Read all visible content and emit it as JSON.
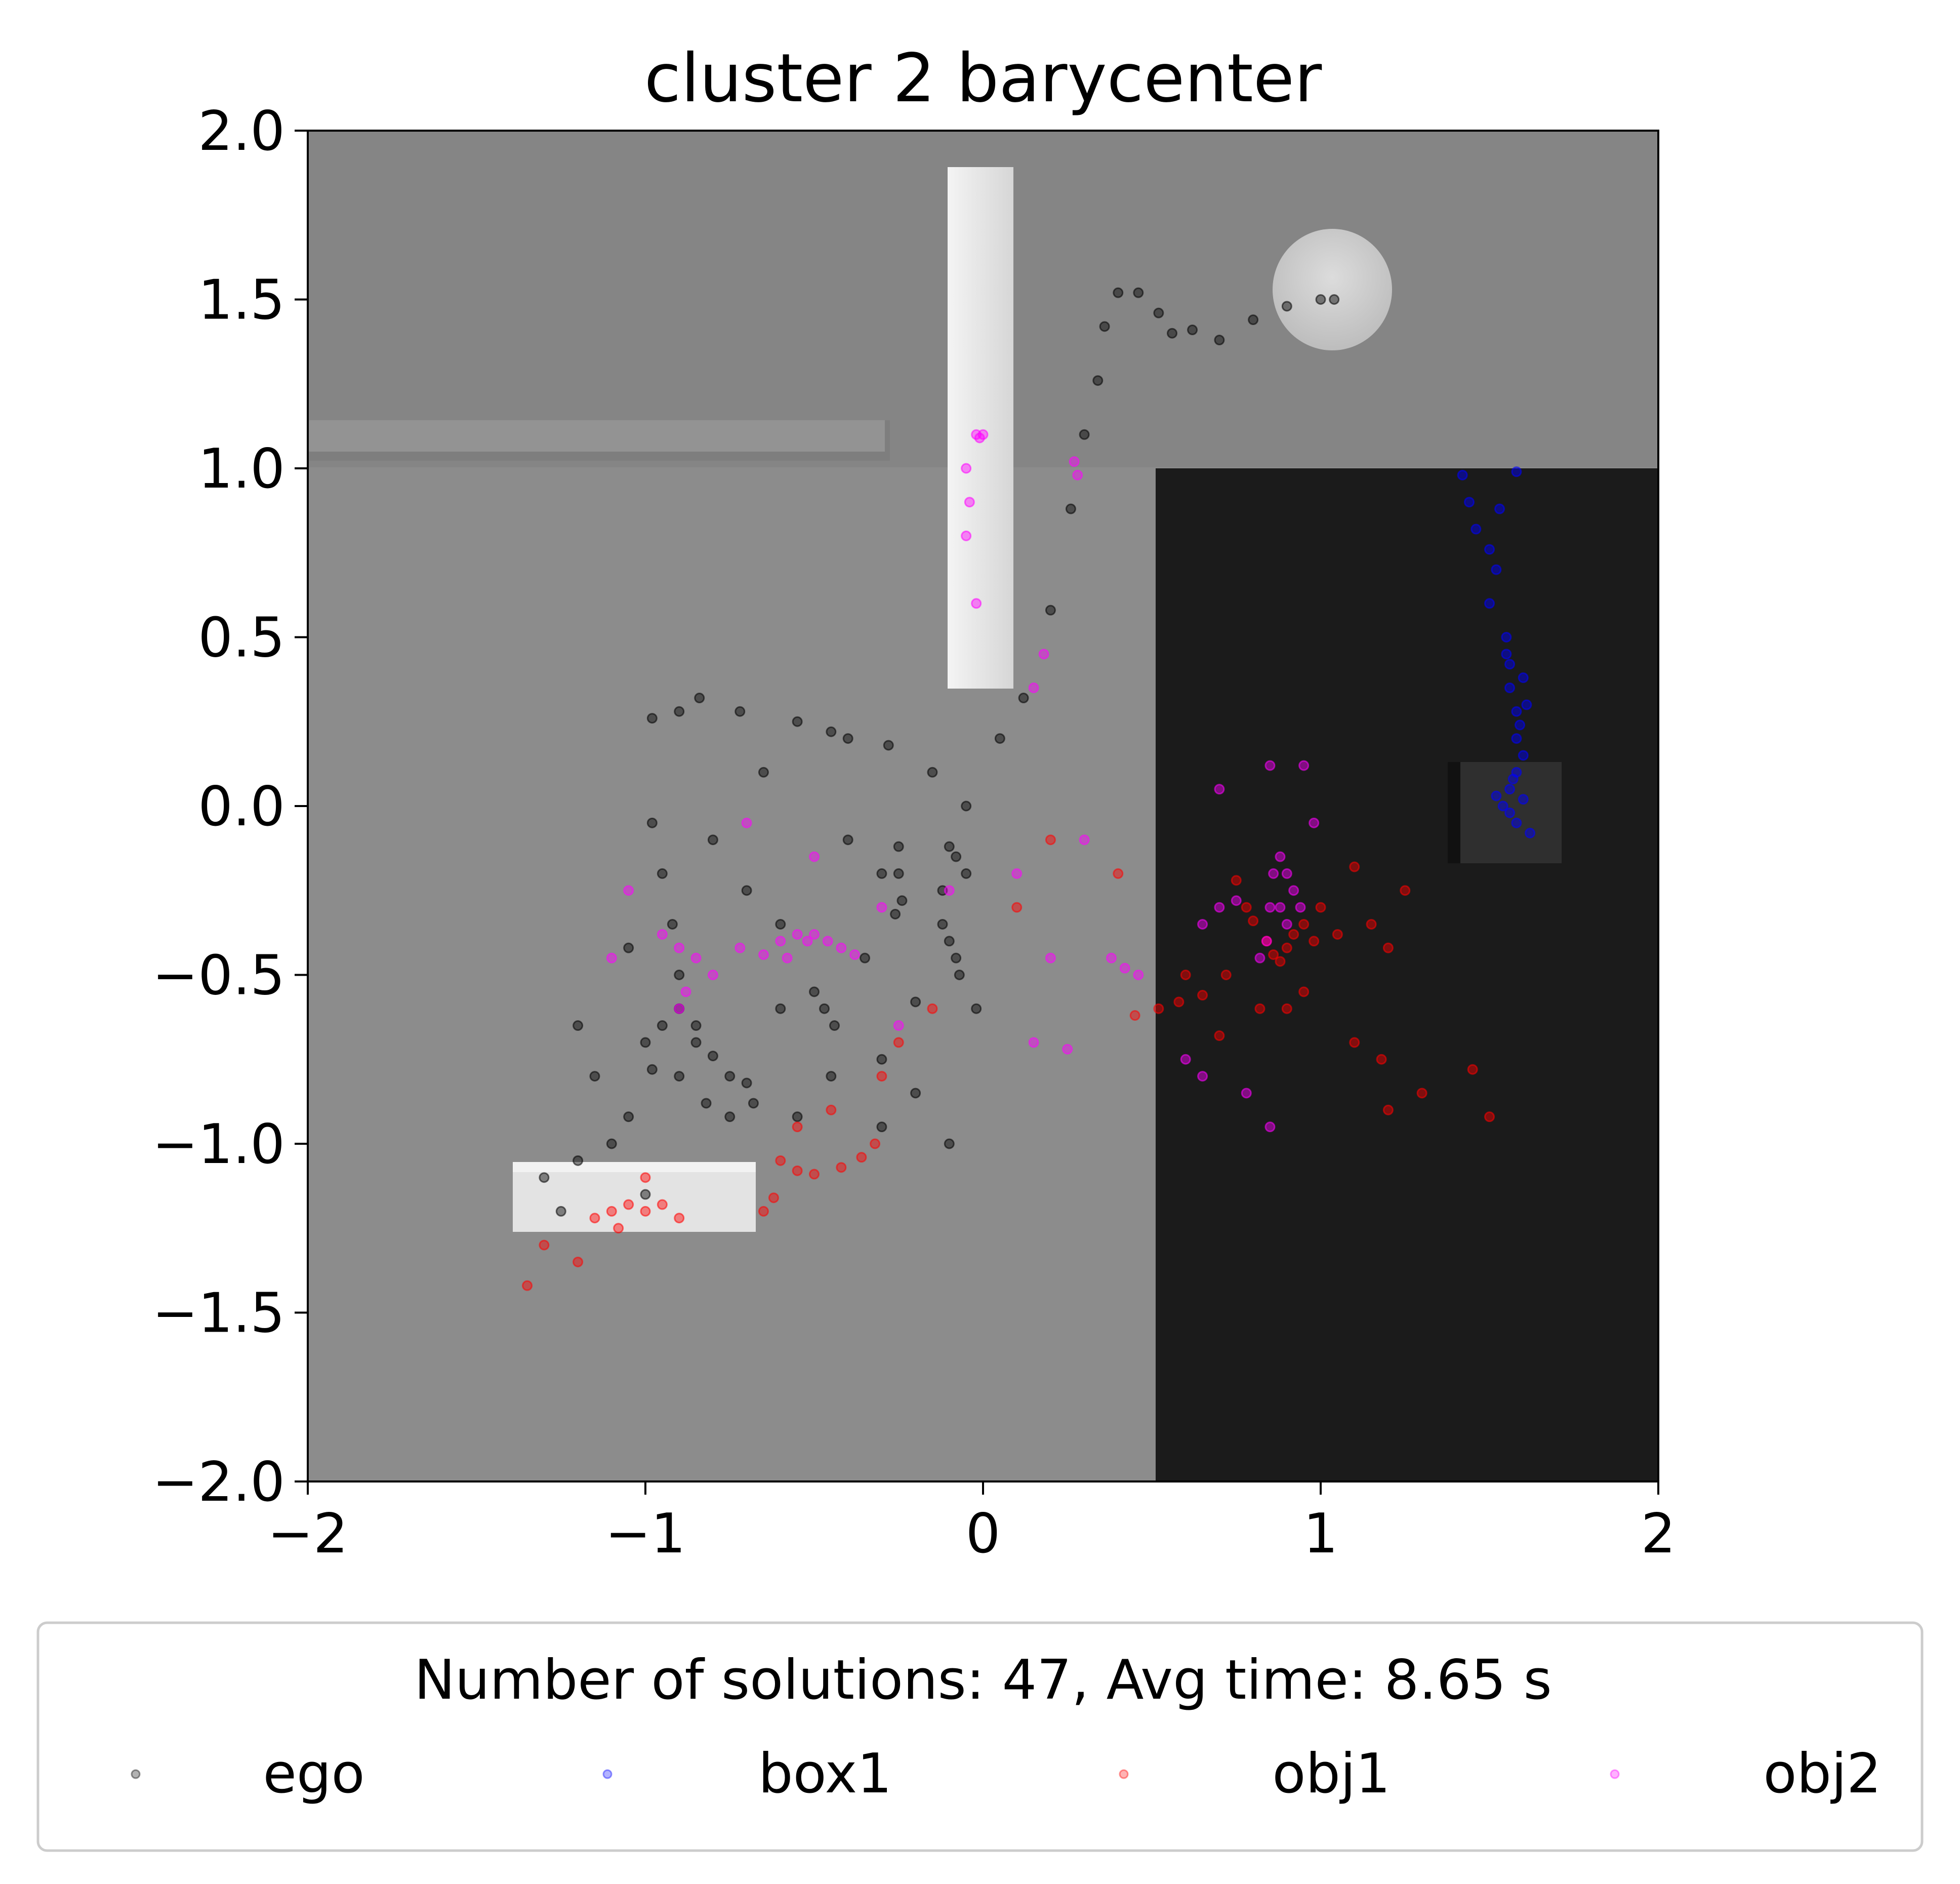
{
  "chart_data": {
    "type": "scatter",
    "title": "cluster 2 barycenter",
    "xlabel": "",
    "ylabel": "",
    "xlim": [
      -2,
      2
    ],
    "ylim": [
      -2,
      2
    ],
    "x_ticks": [
      -2,
      -1,
      0,
      1,
      2
    ],
    "x_tick_labels": [
      "−2",
      "−1",
      "0",
      "1",
      "2"
    ],
    "y_ticks": [
      2.0,
      1.5,
      1.0,
      0.5,
      0.0,
      -0.5,
      -1.0,
      -1.5,
      -2.0
    ],
    "y_tick_labels": [
      "2.0",
      "1.5",
      "1.0",
      "0.5",
      "0.0",
      "−0.5",
      "−1.0",
      "−1.5",
      "−2.0"
    ],
    "grid": false,
    "legend_position": "below",
    "legend_title": "Number of solutions: 47, Avg time: 8.65 s",
    "series": [
      {
        "name": "ego",
        "color": "#000000",
        "points": [
          [
            -0.98,
            0.26
          ],
          [
            -0.9,
            0.28
          ],
          [
            -0.84,
            0.32
          ],
          [
            -0.72,
            0.28
          ],
          [
            -0.55,
            0.25
          ],
          [
            -0.4,
            0.2
          ],
          [
            -0.28,
            0.18
          ],
          [
            -0.15,
            0.1
          ],
          [
            -0.05,
            0.0
          ],
          [
            0.05,
            0.2
          ],
          [
            0.12,
            0.32
          ],
          [
            0.2,
            0.58
          ],
          [
            0.26,
            0.88
          ],
          [
            0.3,
            1.1
          ],
          [
            0.34,
            1.26
          ],
          [
            0.36,
            1.42
          ],
          [
            0.4,
            1.52
          ],
          [
            0.46,
            1.52
          ],
          [
            0.52,
            1.46
          ],
          [
            0.56,
            1.4
          ],
          [
            0.62,
            1.41
          ],
          [
            0.7,
            1.38
          ],
          [
            0.8,
            1.44
          ],
          [
            0.9,
            1.48
          ],
          [
            1.0,
            1.5
          ],
          [
            1.04,
            1.5
          ],
          [
            -0.98,
            -0.05
          ],
          [
            -0.95,
            -0.2
          ],
          [
            -0.92,
            -0.35
          ],
          [
            -0.9,
            -0.5
          ],
          [
            -0.9,
            -0.6
          ],
          [
            -0.95,
            -0.65
          ],
          [
            -1.0,
            -0.7
          ],
          [
            -0.98,
            -0.78
          ],
          [
            -0.9,
            -0.8
          ],
          [
            -0.85,
            -0.7
          ],
          [
            -0.8,
            -0.74
          ],
          [
            -0.75,
            -0.8
          ],
          [
            -0.7,
            -0.82
          ],
          [
            -0.68,
            -0.88
          ],
          [
            -0.75,
            -0.92
          ],
          [
            -0.82,
            -0.88
          ],
          [
            -0.5,
            -0.55
          ],
          [
            -0.47,
            -0.6
          ],
          [
            -0.44,
            -0.65
          ],
          [
            -0.25,
            -0.12
          ],
          [
            -0.25,
            -0.2
          ],
          [
            -0.24,
            -0.28
          ],
          [
            -0.26,
            -0.32
          ],
          [
            -0.1,
            -0.12
          ],
          [
            -0.08,
            -0.15
          ],
          [
            -0.05,
            -0.2
          ],
          [
            -0.12,
            -0.25
          ],
          [
            -0.12,
            -0.35
          ],
          [
            -0.1,
            -0.4
          ],
          [
            -0.08,
            -0.45
          ],
          [
            -0.07,
            -0.5
          ],
          [
            -1.2,
            -0.65
          ],
          [
            -1.15,
            -0.8
          ],
          [
            -1.05,
            -0.92
          ],
          [
            -1.1,
            -1.0
          ],
          [
            -1.2,
            -1.05
          ],
          [
            -1.3,
            -1.1
          ],
          [
            -1.25,
            -1.2
          ],
          [
            -1.0,
            -1.15
          ],
          [
            -0.6,
            -0.35
          ],
          [
            -0.7,
            -0.25
          ],
          [
            -0.4,
            -0.1
          ],
          [
            -0.35,
            -0.45
          ],
          [
            -0.2,
            -0.58
          ],
          [
            -0.02,
            -0.6
          ],
          [
            -0.6,
            -0.6
          ],
          [
            -0.45,
            -0.8
          ],
          [
            -0.3,
            -0.95
          ],
          [
            -0.1,
            -1.0
          ],
          [
            -0.3,
            -0.75
          ],
          [
            -0.2,
            -0.85
          ],
          [
            -0.55,
            -0.92
          ],
          [
            -0.85,
            -0.65
          ],
          [
            -1.05,
            -0.42
          ],
          [
            -0.8,
            -0.1
          ],
          [
            -0.65,
            0.1
          ],
          [
            -0.45,
            0.22
          ],
          [
            -0.3,
            -0.2
          ]
        ]
      },
      {
        "name": "box1",
        "color": "#0000ff",
        "points": [
          [
            1.42,
            0.98
          ],
          [
            1.44,
            0.9
          ],
          [
            1.46,
            0.82
          ],
          [
            1.5,
            0.76
          ],
          [
            1.52,
            0.7
          ],
          [
            1.55,
            0.5
          ],
          [
            1.56,
            0.42
          ],
          [
            1.56,
            0.35
          ],
          [
            1.58,
            0.28
          ],
          [
            1.58,
            0.2
          ],
          [
            1.6,
            0.15
          ],
          [
            1.58,
            0.1
          ],
          [
            1.56,
            0.05
          ],
          [
            1.54,
            0.0
          ],
          [
            1.56,
            -0.02
          ],
          [
            1.58,
            -0.05
          ],
          [
            1.6,
            0.02
          ],
          [
            1.57,
            0.08
          ],
          [
            1.59,
            0.24
          ],
          [
            1.55,
            0.45
          ],
          [
            1.6,
            0.38
          ],
          [
            1.62,
            -0.08
          ],
          [
            1.52,
            0.03
          ],
          [
            1.61,
            0.3
          ],
          [
            1.5,
            0.6
          ],
          [
            1.53,
            0.88
          ],
          [
            1.58,
            0.99
          ]
        ]
      },
      {
        "name": "obj1",
        "color": "#ff0000",
        "points": [
          [
            -1.0,
            -1.1
          ],
          [
            -1.05,
            -1.18
          ],
          [
            -1.1,
            -1.2
          ],
          [
            -1.15,
            -1.22
          ],
          [
            -1.0,
            -1.2
          ],
          [
            -0.95,
            -1.18
          ],
          [
            -1.2,
            -1.35
          ],
          [
            -1.3,
            -1.3
          ],
          [
            -1.35,
            -1.42
          ],
          [
            -0.9,
            -1.22
          ],
          [
            -1.08,
            -1.25
          ],
          [
            -0.6,
            -1.05
          ],
          [
            -0.55,
            -1.08
          ],
          [
            -0.5,
            -1.09
          ],
          [
            -0.42,
            -1.07
          ],
          [
            -0.36,
            -1.04
          ],
          [
            -0.32,
            -1.0
          ],
          [
            -0.62,
            -1.16
          ],
          [
            -0.65,
            -1.2
          ],
          [
            -0.55,
            -0.95
          ],
          [
            -0.45,
            -0.9
          ],
          [
            -0.3,
            -0.8
          ],
          [
            -0.25,
            -0.7
          ],
          [
            -0.15,
            -0.6
          ],
          [
            0.45,
            -0.62
          ],
          [
            0.52,
            -0.6
          ],
          [
            0.58,
            -0.58
          ],
          [
            0.65,
            -0.56
          ],
          [
            0.72,
            -0.5
          ],
          [
            0.78,
            -0.3
          ],
          [
            0.8,
            -0.34
          ],
          [
            0.84,
            -0.4
          ],
          [
            0.86,
            -0.44
          ],
          [
            0.88,
            -0.46
          ],
          [
            0.9,
            -0.42
          ],
          [
            0.92,
            -0.38
          ],
          [
            0.95,
            -0.35
          ],
          [
            0.98,
            -0.4
          ],
          [
            1.0,
            -0.3
          ],
          [
            0.95,
            -0.55
          ],
          [
            0.82,
            -0.6
          ],
          [
            0.75,
            -0.22
          ],
          [
            1.05,
            -0.38
          ],
          [
            1.1,
            -0.18
          ],
          [
            1.15,
            -0.35
          ],
          [
            1.2,
            -0.42
          ],
          [
            1.25,
            -0.25
          ],
          [
            1.18,
            -0.75
          ],
          [
            1.1,
            -0.7
          ],
          [
            0.9,
            -0.6
          ],
          [
            1.3,
            -0.85
          ],
          [
            1.5,
            -0.92
          ],
          [
            1.45,
            -0.78
          ],
          [
            1.2,
            -0.9
          ],
          [
            0.7,
            -0.68
          ],
          [
            0.6,
            -0.5
          ],
          [
            0.4,
            -0.2
          ],
          [
            0.2,
            -0.1
          ],
          [
            0.1,
            -0.3
          ]
        ]
      },
      {
        "name": "obj2",
        "color": "#ff00ff",
        "points": [
          [
            -0.02,
            1.1
          ],
          [
            -0.01,
            1.09
          ],
          [
            0.0,
            1.1
          ],
          [
            -0.05,
            1.0
          ],
          [
            -0.04,
            0.9
          ],
          [
            -0.05,
            0.8
          ],
          [
            -0.02,
            0.6
          ],
          [
            0.27,
            1.02
          ],
          [
            0.28,
            0.98
          ],
          [
            -0.95,
            -0.38
          ],
          [
            -0.9,
            -0.42
          ],
          [
            -0.85,
            -0.45
          ],
          [
            -0.72,
            -0.42
          ],
          [
            -0.65,
            -0.44
          ],
          [
            -0.6,
            -0.4
          ],
          [
            -0.58,
            -0.45
          ],
          [
            -0.55,
            -0.38
          ],
          [
            -0.52,
            -0.4
          ],
          [
            -0.5,
            -0.38
          ],
          [
            -0.46,
            -0.4
          ],
          [
            -0.42,
            -0.42
          ],
          [
            -0.38,
            -0.44
          ],
          [
            -0.88,
            -0.55
          ],
          [
            -0.8,
            -0.5
          ],
          [
            -0.9,
            -0.6
          ],
          [
            -1.05,
            -0.25
          ],
          [
            -1.1,
            -0.45
          ],
          [
            0.38,
            -0.45
          ],
          [
            0.42,
            -0.48
          ],
          [
            0.46,
            -0.5
          ],
          [
            0.82,
            -0.45
          ],
          [
            0.84,
            -0.4
          ],
          [
            0.85,
            -0.3
          ],
          [
            0.86,
            -0.2
          ],
          [
            0.88,
            -0.15
          ],
          [
            0.9,
            -0.2
          ],
          [
            0.92,
            -0.25
          ],
          [
            0.94,
            -0.3
          ],
          [
            0.9,
            -0.35
          ],
          [
            0.88,
            -0.3
          ],
          [
            0.75,
            -0.28
          ],
          [
            0.7,
            -0.3
          ],
          [
            0.65,
            -0.35
          ],
          [
            0.98,
            -0.05
          ],
          [
            0.95,
            0.12
          ],
          [
            0.85,
            0.12
          ],
          [
            0.7,
            0.05
          ],
          [
            0.6,
            -0.75
          ],
          [
            0.78,
            -0.85
          ],
          [
            0.85,
            -0.95
          ],
          [
            0.65,
            -0.8
          ],
          [
            -0.25,
            -0.65
          ],
          [
            -0.1,
            -0.25
          ],
          [
            0.1,
            -0.2
          ],
          [
            0.3,
            -0.1
          ],
          [
            0.2,
            -0.45
          ],
          [
            0.15,
            -0.7
          ],
          [
            0.25,
            -0.72
          ],
          [
            0.18,
            0.45
          ],
          [
            0.15,
            0.35
          ],
          [
            -0.3,
            -0.3
          ],
          [
            -0.5,
            -0.15
          ],
          [
            -0.7,
            -0.05
          ]
        ]
      }
    ]
  }
}
